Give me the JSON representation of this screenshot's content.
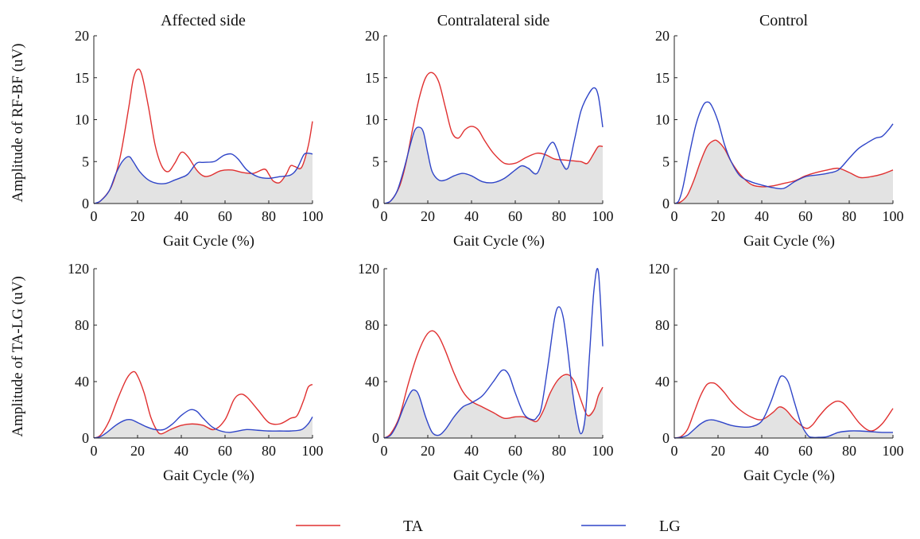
{
  "row_labels": [
    "Amplitude of RF-BF (uV)",
    "Amplitude of TA-LG (uV)"
  ],
  "legend": [
    {
      "name": "TA",
      "color": "#e03030"
    },
    {
      "name": "LG",
      "color": "#2f45c8"
    }
  ],
  "colors": {
    "fill": "#e3e3e3",
    "axis": "#222222"
  },
  "chart_data": [
    {
      "type": "line",
      "title": "Affected side",
      "xlabel": "Gait Cycle (%)",
      "ylabel": "Amplitude of RF-BF (uV)",
      "xlim": [
        0,
        100
      ],
      "ylim": [
        0,
        20
      ],
      "xticks": [
        0,
        20,
        40,
        60,
        80,
        100
      ],
      "yticks": [
        0,
        5,
        10,
        15,
        20
      ],
      "series": [
        {
          "name": "TA",
          "x": [
            0,
            3,
            8,
            12,
            16,
            18,
            20,
            22,
            25,
            28,
            31,
            34,
            37,
            40,
            43,
            47,
            50,
            53,
            58,
            63,
            68,
            73,
            78,
            80,
            82,
            85,
            88,
            90,
            92,
            95,
            98,
            100
          ],
          "y": [
            0,
            0.3,
            2,
            5.5,
            11.5,
            14.8,
            16,
            15.3,
            11.5,
            7,
            4.5,
            3.8,
            4.8,
            6.1,
            5.6,
            4,
            3.3,
            3.3,
            3.9,
            4,
            3.7,
            3.6,
            4.1,
            3.5,
            2.7,
            2.5,
            3.5,
            4.5,
            4.4,
            4.3,
            6.8,
            9.8
          ]
        },
        {
          "name": "LG",
          "x": [
            0,
            3,
            7,
            10,
            13,
            16,
            18,
            21,
            25,
            29,
            33,
            37,
            40,
            43,
            47,
            50,
            55,
            58,
            60,
            63,
            66,
            70,
            75,
            80,
            85,
            90,
            93,
            96,
            98,
            100
          ],
          "y": [
            0,
            0.3,
            1.5,
            3.5,
            5,
            5.6,
            5,
            3.8,
            2.8,
            2.4,
            2.4,
            2.8,
            3.1,
            3.5,
            4.8,
            4.9,
            5,
            5.5,
            5.8,
            5.9,
            5.3,
            4,
            3.2,
            3,
            3.2,
            3.4,
            4.2,
            5.8,
            6,
            5.9
          ]
        }
      ]
    },
    {
      "type": "line",
      "title": "Contralateral side",
      "xlabel": "Gait Cycle (%)",
      "ylabel": "",
      "xlim": [
        0,
        100
      ],
      "ylim": [
        0,
        20
      ],
      "xticks": [
        0,
        20,
        40,
        60,
        80,
        100
      ],
      "yticks": [
        0,
        5,
        10,
        15,
        20
      ],
      "series": [
        {
          "name": "TA",
          "x": [
            0,
            3,
            7,
            10,
            13,
            16,
            19,
            22,
            25,
            28,
            31,
            34,
            37,
            40,
            43,
            46,
            50,
            55,
            60,
            65,
            70,
            74,
            78,
            82,
            86,
            90,
            93,
            96,
            98,
            100
          ],
          "y": [
            0,
            0.3,
            2,
            4.8,
            8.8,
            12.5,
            15,
            15.6,
            14.5,
            11.5,
            8.5,
            7.8,
            8.8,
            9.2,
            8.8,
            7.5,
            6,
            4.8,
            4.8,
            5.5,
            6,
            5.8,
            5.3,
            5.2,
            5.1,
            5,
            4.8,
            6,
            6.8,
            6.8
          ]
        },
        {
          "name": "LG",
          "x": [
            0,
            3,
            6,
            9,
            12,
            14,
            16,
            18,
            20,
            22,
            25,
            28,
            32,
            36,
            40,
            45,
            50,
            55,
            60,
            63,
            66,
            70,
            74,
            77,
            79,
            81,
            84,
            87,
            90,
            93,
            96,
            98,
            100
          ],
          "y": [
            0,
            0.3,
            1.5,
            4,
            7,
            8.7,
            9.1,
            8.5,
            6,
            3.8,
            2.8,
            2.8,
            3.3,
            3.6,
            3.3,
            2.6,
            2.5,
            3,
            4,
            4.5,
            4.2,
            3.6,
            6.2,
            7.3,
            6.5,
            5,
            4.2,
            7.5,
            11,
            12.8,
            13.8,
            12.8,
            9.1
          ]
        }
      ]
    },
    {
      "type": "line",
      "title": "Control",
      "xlabel": "Gait Cycle (%)",
      "ylabel": "",
      "xlim": [
        0,
        100
      ],
      "ylim": [
        0,
        20
      ],
      "xticks": [
        0,
        20,
        40,
        60,
        80,
        100
      ],
      "yticks": [
        0,
        5,
        10,
        15,
        20
      ],
      "series": [
        {
          "name": "TA",
          "x": [
            0,
            3,
            6,
            9,
            12,
            15,
            18,
            20,
            23,
            26,
            30,
            35,
            40,
            45,
            50,
            55,
            60,
            65,
            70,
            75,
            80,
            85,
            90,
            95,
            100
          ],
          "y": [
            0,
            0.2,
            1,
            2.8,
            5,
            6.8,
            7.5,
            7.4,
            6.5,
            5,
            3.5,
            2.3,
            2,
            2.1,
            2.4,
            2.7,
            3.3,
            3.7,
            4,
            4.2,
            3.7,
            3.1,
            3.2,
            3.5,
            4
          ]
        },
        {
          "name": "LG",
          "x": [
            0,
            2,
            4,
            7,
            10,
            13,
            15,
            17,
            20,
            23,
            26,
            30,
            35,
            40,
            45,
            50,
            55,
            60,
            65,
            70,
            75,
            80,
            84,
            88,
            92,
            95,
            98,
            100
          ],
          "y": [
            0,
            0.3,
            2,
            6,
            9.5,
            11.6,
            12.1,
            11.7,
            9.8,
            7,
            5,
            3.3,
            2.6,
            2.2,
            1.9,
            1.8,
            2.6,
            3.2,
            3.4,
            3.6,
            4,
            5.4,
            6.5,
            7.2,
            7.8,
            8,
            8.8,
            9.5
          ]
        }
      ]
    },
    {
      "type": "line",
      "title": "",
      "xlabel": "Gait Cycle (%)",
      "ylabel": "Amplitude of TA-LG (uV)",
      "xlim": [
        0,
        100
      ],
      "ylim": [
        0,
        120
      ],
      "xticks": [
        0,
        20,
        40,
        60,
        80,
        100
      ],
      "yticks": [
        0,
        40,
        80,
        120
      ],
      "series": [
        {
          "name": "TA",
          "x": [
            0,
            3,
            7,
            11,
            15,
            18,
            20,
            23,
            26,
            29,
            31,
            35,
            40,
            45,
            50,
            55,
            60,
            64,
            67,
            70,
            75,
            80,
            85,
            90,
            93,
            96,
            98,
            100
          ],
          "y": [
            0,
            2,
            12,
            28,
            42,
            47,
            44,
            32,
            15,
            5,
            3,
            6,
            9,
            10,
            9,
            6,
            13,
            27,
            31,
            29,
            20,
            11,
            10,
            14,
            16,
            27,
            36,
            38
          ]
        },
        {
          "name": "LG",
          "x": [
            0,
            3,
            6,
            10,
            14,
            17,
            20,
            24,
            28,
            32,
            36,
            40,
            44,
            47,
            50,
            54,
            58,
            62,
            66,
            70,
            75,
            80,
            85,
            90,
            95,
            98,
            100
          ],
          "y": [
            0,
            1,
            4,
            9,
            12.5,
            13,
            11,
            8,
            6,
            6,
            10,
            16,
            20,
            19,
            14,
            8,
            5,
            4,
            5,
            6,
            5.5,
            5,
            5,
            5,
            6,
            10,
            15
          ]
        }
      ]
    },
    {
      "type": "line",
      "title": "",
      "xlabel": "Gait Cycle (%)",
      "ylabel": "",
      "xlim": [
        0,
        100
      ],
      "ylim": [
        0,
        120
      ],
      "xticks": [
        0,
        20,
        40,
        60,
        80,
        100
      ],
      "yticks": [
        0,
        40,
        80,
        120
      ],
      "series": [
        {
          "name": "TA",
          "x": [
            0,
            3,
            7,
            11,
            15,
            19,
            22,
            25,
            28,
            32,
            36,
            40,
            45,
            50,
            55,
            60,
            64,
            67,
            70,
            73,
            76,
            80,
            84,
            87,
            90,
            93,
            96,
            98,
            100
          ],
          "y": [
            0,
            3,
            15,
            38,
            58,
            72,
            76,
            72,
            62,
            46,
            33,
            26,
            22,
            18,
            14,
            15,
            15,
            13,
            12,
            20,
            32,
            42,
            45,
            40,
            27,
            16,
            20,
            30,
            36
          ]
        },
        {
          "name": "LG",
          "x": [
            0,
            3,
            6,
            9,
            12,
            14,
            16,
            19,
            22,
            25,
            28,
            32,
            36,
            40,
            45,
            50,
            54,
            57,
            60,
            64,
            68,
            70,
            72,
            75,
            78,
            80,
            82,
            84,
            86,
            88,
            90,
            92,
            94,
            96,
            98,
            100
          ],
          "y": [
            0,
            2,
            10,
            22,
            32,
            34,
            30,
            15,
            4,
            2,
            6,
            15,
            22,
            25,
            30,
            40,
            48,
            45,
            32,
            17,
            13,
            15,
            22,
            52,
            85,
            93,
            85,
            62,
            35,
            15,
            3,
            15,
            60,
            105,
            118,
            65
          ]
        }
      ]
    },
    {
      "type": "line",
      "title": "",
      "xlabel": "Gait Cycle (%)",
      "ylabel": "",
      "xlim": [
        0,
        100
      ],
      "ylim": [
        0,
        120
      ],
      "xticks": [
        0,
        20,
        40,
        60,
        80,
        100
      ],
      "yticks": [
        0,
        40,
        80,
        120
      ],
      "series": [
        {
          "name": "TA",
          "x": [
            0,
            3,
            6,
            9,
            12,
            15,
            18,
            20,
            23,
            26,
            30,
            35,
            40,
            45,
            48,
            51,
            55,
            60,
            63,
            66,
            70,
            74,
            77,
            80,
            85,
            90,
            95,
            100
          ],
          "y": [
            0,
            1,
            6,
            18,
            30,
            38,
            39,
            37,
            32,
            26,
            20,
            15,
            13,
            18,
            22,
            20,
            13,
            7,
            9,
            15,
            22,
            26,
            25,
            20,
            10,
            5,
            10,
            21
          ]
        },
        {
          "name": "LG",
          "x": [
            0,
            3,
            6,
            9,
            12,
            15,
            18,
            22,
            26,
            30,
            35,
            40,
            44,
            47,
            49,
            52,
            55,
            58,
            61,
            63,
            66,
            70,
            75,
            80,
            85,
            90,
            95,
            100
          ],
          "y": [
            0,
            0.5,
            2,
            6,
            10,
            12.5,
            12.8,
            11,
            9,
            8,
            8,
            12,
            25,
            38,
            44,
            40,
            25,
            10,
            2,
            0.5,
            0.5,
            1,
            4,
            5,
            5,
            4.5,
            4,
            4
          ]
        }
      ]
    }
  ]
}
